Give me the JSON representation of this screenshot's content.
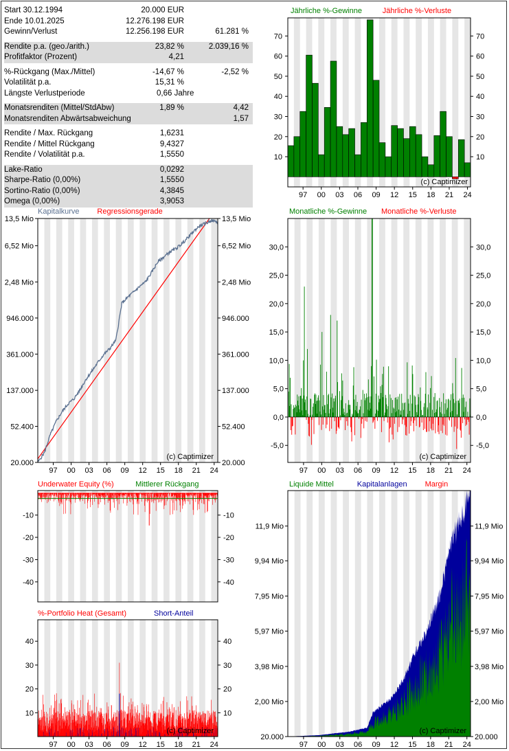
{
  "stats": [
    {
      "group": 0,
      "label": "Start  30.12.1994",
      "v1": "20.000 EUR",
      "v2": ""
    },
    {
      "group": 0,
      "label": "Ende  10.01.2025",
      "v1": "12.276.198 EUR",
      "v2": ""
    },
    {
      "group": 0,
      "label": "Gewinn/Verlust",
      "v1": "12.256.198 EUR",
      "v2": "61.281 %"
    },
    {
      "group": 1,
      "label": "Rendite p.a. (geo./arith.)",
      "v1": "23,82 %",
      "v2": "2.039,16 %"
    },
    {
      "group": 1,
      "label": "Profitfaktor (Prozent)",
      "v1": "4,21",
      "v2": ""
    },
    {
      "group": 2,
      "label": "%-Rückgang (Max./Mittel)",
      "v1": "-14,67 %",
      "v2": "-2,52 %"
    },
    {
      "group": 2,
      "label": "Volatilität p.a.",
      "v1": "15,31 %",
      "v2": ""
    },
    {
      "group": 2,
      "label": "Längste Verlustperiode",
      "v1": "0,66  Jahre",
      "v2": ""
    },
    {
      "group": 3,
      "label": "Monatsrenditen (Mittel/StdAbw)",
      "v1": "1,89 %",
      "v2": "4,42"
    },
    {
      "group": 3,
      "label": "Monatsrenditen Abwärtsabweichung",
      "v1": "",
      "v2": "1,57"
    },
    {
      "group": 4,
      "label": "Rendite / Max. Rückgang",
      "v1": "1,6231",
      "v2": ""
    },
    {
      "group": 4,
      "label": "Rendite / Mittel Rückgang",
      "v1": "9,4327",
      "v2": ""
    },
    {
      "group": 4,
      "label": "Rendite / Volatilität p.a.",
      "v1": "1,5550",
      "v2": ""
    },
    {
      "group": 5,
      "label": "Lake-Ratio",
      "v1": "0,0292",
      "v2": ""
    },
    {
      "group": 5,
      "label": "Sharpe-Ratio (0,00%)",
      "v1": "1,5550",
      "v2": ""
    },
    {
      "group": 5,
      "label": "Sortino-Ratio (0,00%)",
      "v1": "4,3845",
      "v2": ""
    },
    {
      "group": 5,
      "label": "Omega (0,00%)",
      "v1": "3,9053",
      "v2": ""
    }
  ],
  "watermark": "(c) Captimizer",
  "colors": {
    "green": "#008000",
    "red": "#ff0000",
    "blue": "#00009c",
    "curve": "#5a7090",
    "band": "#e6e6e6"
  },
  "chart_data": [
    {
      "id": "annual",
      "type": "bar",
      "legend": [
        {
          "text": "Jährliche %-Gewinne",
          "color": "#008000"
        },
        {
          "text": "Jährliche %-Verluste",
          "color": "#ff0000"
        }
      ],
      "x": [
        1995,
        1996,
        1997,
        1998,
        1999,
        2000,
        2001,
        2002,
        2003,
        2004,
        2005,
        2006,
        2007,
        2008,
        2009,
        2010,
        2011,
        2012,
        2013,
        2014,
        2015,
        2016,
        2017,
        2018,
        2019,
        2020,
        2021,
        2022,
        2023,
        2024
      ],
      "values": [
        15.5,
        20,
        32.5,
        60.5,
        46.5,
        11,
        34.5,
        57.5,
        25,
        21,
        24,
        11,
        27,
        78,
        48,
        17,
        10,
        25.5,
        24,
        19,
        25,
        21,
        10,
        6,
        20.5,
        32.5,
        20,
        -1,
        18.5,
        7
      ],
      "ylim": [
        -5,
        79
      ],
      "yticks": [
        10,
        20,
        30,
        40,
        50,
        60,
        70
      ],
      "xticks": [
        "97",
        "00",
        "03",
        "06",
        "09",
        "12",
        "15",
        "18",
        "21",
        "24"
      ]
    },
    {
      "id": "equity",
      "type": "line",
      "yscale": "log",
      "legend": [
        {
          "text": "Kapitalkurve",
          "color": "#5a7090"
        },
        {
          "text": "Regressionsgerade",
          "color": "#ff0000"
        }
      ],
      "x_range": [
        1994.9,
        2025.1
      ],
      "ylim": [
        20000,
        13500000
      ],
      "yticks": [
        {
          "v": 20000,
          "label": "20.000"
        },
        {
          "v": 52400,
          "label": "52.400"
        },
        {
          "v": 137000,
          "label": "137.000"
        },
        {
          "v": 361000,
          "label": "361.000"
        },
        {
          "v": 946000,
          "label": "946.000"
        },
        {
          "v": 2480000,
          "label": "2,48 Mio"
        },
        {
          "v": 6520000,
          "label": "6,52 Mio"
        },
        {
          "v": 13500000,
          "label": "13,5 Mio"
        }
      ],
      "xticks": [
        "97",
        "00",
        "03",
        "06",
        "09",
        "12",
        "15",
        "18",
        "21",
        "24"
      ],
      "curve": [
        [
          1994.9,
          20000
        ],
        [
          1996,
          26000
        ],
        [
          1997,
          42000
        ],
        [
          1998,
          60000
        ],
        [
          1999,
          78000
        ],
        [
          2000,
          96000
        ],
        [
          2001,
          110000
        ],
        [
          2002,
          140000
        ],
        [
          2003,
          185000
        ],
        [
          2004,
          230000
        ],
        [
          2005,
          290000
        ],
        [
          2006,
          360000
        ],
        [
          2007,
          420000
        ],
        [
          2008,
          520000
        ],
        [
          2009,
          1400000
        ],
        [
          2010,
          1650000
        ],
        [
          2011,
          1900000
        ],
        [
          2012,
          2200000
        ],
        [
          2013,
          2500000
        ],
        [
          2014,
          3200000
        ],
        [
          2015,
          4200000
        ],
        [
          2016,
          4800000
        ],
        [
          2017,
          5500000
        ],
        [
          2018,
          6000000
        ],
        [
          2019,
          6800000
        ],
        [
          2020,
          8000000
        ],
        [
          2021,
          9500000
        ],
        [
          2022,
          11000000
        ],
        [
          2023,
          11800000
        ],
        [
          2024,
          12800000
        ],
        [
          2025.1,
          12276198
        ]
      ],
      "regression": [
        [
          1994.9,
          22000
        ],
        [
          2023.7,
          13500000
        ]
      ]
    },
    {
      "id": "monthly",
      "type": "bar",
      "legend": [
        {
          "text": "Monatliche %-Gewinne",
          "color": "#008000"
        },
        {
          "text": "Monatliche %-Verluste",
          "color": "#ff0000"
        }
      ],
      "x_range": [
        1994.9,
        2025.1
      ],
      "ylim": [
        -8,
        35
      ],
      "yticks": [
        {
          "v": -5,
          "label": "-5,0"
        },
        {
          "v": 0,
          "label": "0,0"
        },
        {
          "v": 5,
          "label": "5,0"
        },
        {
          "v": 10,
          "label": "10,0"
        },
        {
          "v": 15,
          "label": "15,0"
        },
        {
          "v": 20,
          "label": "20,0"
        },
        {
          "v": 25,
          "label": "25,0"
        },
        {
          "v": 30,
          "label": "30,0"
        }
      ],
      "xticks": [
        "97",
        "00",
        "03",
        "06",
        "09",
        "12",
        "15",
        "18",
        "21",
        "24"
      ],
      "peaks": [
        [
          1997.6,
          23
        ],
        [
          2008.8,
          35
        ],
        [
          2001.9,
          18
        ],
        [
          2003,
          17
        ],
        [
          2000.5,
          15
        ],
        [
          1998.1,
          12
        ]
      ],
      "seed": 7
    },
    {
      "id": "underwater",
      "type": "area",
      "legend": [
        {
          "text": "Underwater Equity (%)",
          "color": "#ff0000"
        },
        {
          "text": "Mittlerer Rückgang",
          "color": "#008000"
        }
      ],
      "x_range": [
        1994.9,
        2025.1
      ],
      "ylim": [
        -49,
        1
      ],
      "yticks": [
        {
          "v": -10,
          "label": "-10"
        },
        {
          "v": -20,
          "label": "-20"
        },
        {
          "v": -30,
          "label": "-30"
        },
        {
          "v": -40,
          "label": "-40"
        }
      ],
      "mean": -2.52,
      "min": -14.67,
      "seed": 11
    },
    {
      "id": "heat",
      "type": "bar",
      "legend": [
        {
          "text": "%-Portfolio Heat (Gesamt)",
          "color": "#ff0000"
        },
        {
          "text": "Short-Anteil",
          "color": "#00009c"
        }
      ],
      "x_range": [
        1994.9,
        2025.1
      ],
      "ylim": [
        0,
        49
      ],
      "yticks": [
        {
          "v": 10,
          "label": "10"
        },
        {
          "v": 20,
          "label": "20"
        },
        {
          "v": 30,
          "label": "30"
        },
        {
          "v": 40,
          "label": "40"
        }
      ],
      "xticks": [
        "97",
        "00",
        "03",
        "06",
        "09",
        "12",
        "15",
        "18",
        "21",
        "24"
      ],
      "peak": [
        2008.6,
        31
      ],
      "seed": 19
    },
    {
      "id": "cash",
      "type": "area",
      "legend": [
        {
          "text": "Liquide Mittel",
          "color": "#008000"
        },
        {
          "text": "Kapitalanlagen",
          "color": "#00009c"
        },
        {
          "text": "Margin",
          "color": "#ff0000"
        }
      ],
      "x_range": [
        1994.9,
        2025.1
      ],
      "ylim": [
        20000,
        13900000
      ],
      "yticks": [
        {
          "v": 20000,
          "label": "20.000"
        },
        {
          "v": 2000000,
          "label": "2,00 Mio"
        },
        {
          "v": 3980000,
          "label": "3,98 Mio"
        },
        {
          "v": 5970000,
          "label": "5,97 Mio"
        },
        {
          "v": 7950000,
          "label": "7,95 Mio"
        },
        {
          "v": 9940000,
          "label": "9,94 Mio"
        },
        {
          "v": 11900000,
          "label": "11,9 Mio"
        }
      ],
      "xticks": [
        "97",
        "00",
        "03",
        "06",
        "09",
        "12",
        "15",
        "18",
        "21",
        "24"
      ],
      "seed": 23
    }
  ]
}
